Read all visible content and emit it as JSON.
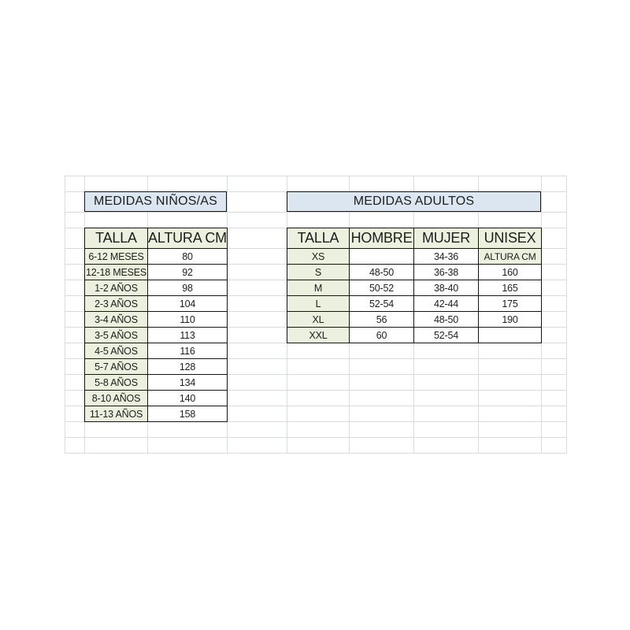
{
  "children_table": {
    "title": "MEDIDAS NIÑOS/AS",
    "headers": [
      "TALLA",
      "ALTURA CM"
    ],
    "rows": [
      [
        "6-12 MESES",
        "80"
      ],
      [
        "12-18 MESES",
        "92"
      ],
      [
        "1-2 AÑOS",
        "98"
      ],
      [
        "2-3 AÑOS",
        "104"
      ],
      [
        "3-4 AÑOS",
        "110"
      ],
      [
        "3-5 AÑOS",
        "113"
      ],
      [
        "4-5 AÑOS",
        "116"
      ],
      [
        "5-7 AÑOS",
        "128"
      ],
      [
        "5-8 AÑOS",
        "134"
      ],
      [
        "8-10 AÑOS",
        "140"
      ],
      [
        "11-13 AÑOS",
        "158"
      ]
    ]
  },
  "adults_table": {
    "title": "MEDIDAS ADULTOS",
    "headers": [
      "TALLA",
      "HOMBRE",
      "MUJER",
      "UNISEX"
    ],
    "rows": [
      [
        "XS",
        "",
        "34-36",
        "ALTURA CM"
      ],
      [
        "S",
        "48-50",
        "36-38",
        "160"
      ],
      [
        "M",
        "50-52",
        "38-40",
        "165"
      ],
      [
        "L",
        "52-54",
        "42-44",
        "175"
      ],
      [
        "XL",
        "56",
        "48-50",
        "190"
      ],
      [
        "XXL",
        "60",
        "52-54",
        ""
      ]
    ]
  },
  "colors": {
    "title_bg": "#dce6f1",
    "header_bg": "#ebf1de",
    "cell_border": "#141414",
    "gridline": "#d7dbe2",
    "background": "#ffffff"
  }
}
